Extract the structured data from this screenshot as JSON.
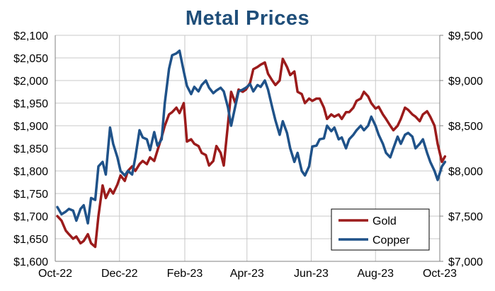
{
  "chart_data": {
    "type": "line",
    "title": "Metal Prices",
    "grid": true,
    "legend_position": "bottom-right",
    "x_axis": {
      "type": "date",
      "min": "2022-10-01",
      "max": "2023-10-01",
      "ticks": [
        {
          "date": "2022-10-01",
          "label": "Oct-22"
        },
        {
          "date": "2022-12-01",
          "label": "Dec-22"
        },
        {
          "date": "2023-02-01",
          "label": "Feb-23"
        },
        {
          "date": "2023-04-01",
          "label": "Apr-23"
        },
        {
          "date": "2023-06-01",
          "label": "Jun-23"
        },
        {
          "date": "2023-08-01",
          "label": "Aug-23"
        },
        {
          "date": "2023-10-01",
          "label": "Oct-23"
        }
      ]
    },
    "y_axis_left": {
      "min": 1600,
      "max": 2100,
      "ticks": [
        {
          "value": 1600,
          "label": "$1,600"
        },
        {
          "value": 1650,
          "label": "$1,650"
        },
        {
          "value": 1700,
          "label": "$1,700"
        },
        {
          "value": 1750,
          "label": "$1,750"
        },
        {
          "value": 1800,
          "label": "$1,800"
        },
        {
          "value": 1850,
          "label": "$1,850"
        },
        {
          "value": 1900,
          "label": "$1,900"
        },
        {
          "value": 1950,
          "label": "$1,950"
        },
        {
          "value": 2000,
          "label": "$2,000"
        },
        {
          "value": 2050,
          "label": "$2,050"
        },
        {
          "value": 2100,
          "label": "$2,100"
        }
      ]
    },
    "y_axis_right": {
      "min": 7000,
      "max": 9500,
      "ticks": [
        {
          "value": 7000,
          "label": "$7,000"
        },
        {
          "value": 7500,
          "label": "$7,500"
        },
        {
          "value": 8000,
          "label": "$8,000"
        },
        {
          "value": 8500,
          "label": "$8,500"
        },
        {
          "value": 9000,
          "label": "$9,000"
        },
        {
          "value": 9500,
          "label": "$9,500"
        }
      ]
    },
    "series": [
      {
        "name": "Gold",
        "axis": "left",
        "color": "#9b1b1b",
        "points": [
          [
            "2022-10-03",
            1700
          ],
          [
            "2022-10-07",
            1690
          ],
          [
            "2022-10-11",
            1668
          ],
          [
            "2022-10-14",
            1660
          ],
          [
            "2022-10-18",
            1650
          ],
          [
            "2022-10-21",
            1655
          ],
          [
            "2022-10-25",
            1640
          ],
          [
            "2022-10-28",
            1645
          ],
          [
            "2022-11-01",
            1660
          ],
          [
            "2022-11-04",
            1640
          ],
          [
            "2022-11-08",
            1632
          ],
          [
            "2022-11-11",
            1700
          ],
          [
            "2022-11-15",
            1768
          ],
          [
            "2022-11-18",
            1740
          ],
          [
            "2022-11-22",
            1760
          ],
          [
            "2022-11-25",
            1750
          ],
          [
            "2022-11-29",
            1770
          ],
          [
            "2022-12-02",
            1790
          ],
          [
            "2022-12-06",
            1778
          ],
          [
            "2022-12-09",
            1800
          ],
          [
            "2022-12-13",
            1810
          ],
          [
            "2022-12-16",
            1800
          ],
          [
            "2022-12-20",
            1815
          ],
          [
            "2022-12-23",
            1822
          ],
          [
            "2022-12-27",
            1815
          ],
          [
            "2022-12-30",
            1830
          ],
          [
            "2023-01-03",
            1822
          ],
          [
            "2023-01-06",
            1845
          ],
          [
            "2023-01-10",
            1875
          ],
          [
            "2023-01-13",
            1900
          ],
          [
            "2023-01-17",
            1925
          ],
          [
            "2023-01-20",
            1930
          ],
          [
            "2023-01-24",
            1940
          ],
          [
            "2023-01-27",
            1928
          ],
          [
            "2023-01-31",
            1950
          ],
          [
            "2023-02-03",
            1865
          ],
          [
            "2023-02-07",
            1870
          ],
          [
            "2023-02-10",
            1860
          ],
          [
            "2023-02-14",
            1855
          ],
          [
            "2023-02-17",
            1840
          ],
          [
            "2023-02-21",
            1835
          ],
          [
            "2023-02-24",
            1812
          ],
          [
            "2023-02-28",
            1822
          ],
          [
            "2023-03-03",
            1855
          ],
          [
            "2023-03-07",
            1840
          ],
          [
            "2023-03-10",
            1812
          ],
          [
            "2023-03-14",
            1905
          ],
          [
            "2023-03-17",
            1975
          ],
          [
            "2023-03-21",
            1950
          ],
          [
            "2023-03-24",
            1980
          ],
          [
            "2023-03-28",
            1975
          ],
          [
            "2023-03-31",
            1980
          ],
          [
            "2023-04-04",
            1995
          ],
          [
            "2023-04-07",
            2025
          ],
          [
            "2023-04-11",
            2030
          ],
          [
            "2023-04-14",
            2035
          ],
          [
            "2023-04-18",
            2040
          ],
          [
            "2023-04-21",
            2015
          ],
          [
            "2023-04-25",
            2000
          ],
          [
            "2023-04-28",
            1990
          ],
          [
            "2023-05-02",
            2000
          ],
          [
            "2023-05-05",
            2048
          ],
          [
            "2023-05-09",
            2030
          ],
          [
            "2023-05-12",
            2012
          ],
          [
            "2023-05-16",
            2020
          ],
          [
            "2023-05-19",
            1975
          ],
          [
            "2023-05-23",
            1970
          ],
          [
            "2023-05-26",
            1950
          ],
          [
            "2023-05-30",
            1960
          ],
          [
            "2023-06-02",
            1955
          ],
          [
            "2023-06-06",
            1960
          ],
          [
            "2023-06-09",
            1960
          ],
          [
            "2023-06-13",
            1940
          ],
          [
            "2023-06-16",
            1915
          ],
          [
            "2023-06-20",
            1925
          ],
          [
            "2023-06-23",
            1920
          ],
          [
            "2023-06-27",
            1925
          ],
          [
            "2023-06-30",
            1915
          ],
          [
            "2023-07-04",
            1930
          ],
          [
            "2023-07-07",
            1930
          ],
          [
            "2023-07-11",
            1940
          ],
          [
            "2023-07-14",
            1955
          ],
          [
            "2023-07-18",
            1960
          ],
          [
            "2023-07-21",
            1975
          ],
          [
            "2023-07-25",
            1965
          ],
          [
            "2023-07-28",
            1950
          ],
          [
            "2023-08-01",
            1938
          ],
          [
            "2023-08-04",
            1942
          ],
          [
            "2023-08-08",
            1925
          ],
          [
            "2023-08-11",
            1915
          ],
          [
            "2023-08-15",
            1900
          ],
          [
            "2023-08-18",
            1890
          ],
          [
            "2023-08-22",
            1900
          ],
          [
            "2023-08-25",
            1915
          ],
          [
            "2023-08-29",
            1940
          ],
          [
            "2023-09-01",
            1935
          ],
          [
            "2023-09-05",
            1925
          ],
          [
            "2023-09-08",
            1920
          ],
          [
            "2023-09-12",
            1910
          ],
          [
            "2023-09-15",
            1925
          ],
          [
            "2023-09-19",
            1932
          ],
          [
            "2023-09-22",
            1920
          ],
          [
            "2023-09-26",
            1900
          ],
          [
            "2023-09-29",
            1860
          ],
          [
            "2023-10-03",
            1820
          ],
          [
            "2023-10-06",
            1832
          ]
        ]
      },
      {
        "name": "Copper",
        "axis": "right",
        "color": "#1f5289",
        "points": [
          [
            "2022-10-03",
            7600
          ],
          [
            "2022-10-07",
            7520
          ],
          [
            "2022-10-11",
            7550
          ],
          [
            "2022-10-14",
            7580
          ],
          [
            "2022-10-18",
            7560
          ],
          [
            "2022-10-21",
            7450
          ],
          [
            "2022-10-25",
            7580
          ],
          [
            "2022-10-28",
            7620
          ],
          [
            "2022-11-01",
            7420
          ],
          [
            "2022-11-04",
            7700
          ],
          [
            "2022-11-08",
            7680
          ],
          [
            "2022-11-11",
            8050
          ],
          [
            "2022-11-15",
            8100
          ],
          [
            "2022-11-18",
            7960
          ],
          [
            "2022-11-22",
            8480
          ],
          [
            "2022-11-25",
            8300
          ],
          [
            "2022-11-29",
            8150
          ],
          [
            "2022-12-02",
            8000
          ],
          [
            "2022-12-06",
            7950
          ],
          [
            "2022-12-09",
            8000
          ],
          [
            "2022-12-13",
            7960
          ],
          [
            "2022-12-16",
            8150
          ],
          [
            "2022-12-20",
            8450
          ],
          [
            "2022-12-23",
            8370
          ],
          [
            "2022-12-27",
            8350
          ],
          [
            "2022-12-30",
            8230
          ],
          [
            "2023-01-03",
            8430
          ],
          [
            "2023-01-06",
            8280
          ],
          [
            "2023-01-10",
            8350
          ],
          [
            "2023-01-13",
            8750
          ],
          [
            "2023-01-17",
            9130
          ],
          [
            "2023-01-20",
            9280
          ],
          [
            "2023-01-24",
            9300
          ],
          [
            "2023-01-27",
            9330
          ],
          [
            "2023-01-31",
            9100
          ],
          [
            "2023-02-03",
            8940
          ],
          [
            "2023-02-07",
            8850
          ],
          [
            "2023-02-10",
            8930
          ],
          [
            "2023-02-14",
            8880
          ],
          [
            "2023-02-17",
            8950
          ],
          [
            "2023-02-21",
            9000
          ],
          [
            "2023-02-24",
            8920
          ],
          [
            "2023-02-28",
            8860
          ],
          [
            "2023-03-03",
            8890
          ],
          [
            "2023-03-07",
            8920
          ],
          [
            "2023-03-10",
            8880
          ],
          [
            "2023-03-14",
            8700
          ],
          [
            "2023-03-17",
            8500
          ],
          [
            "2023-03-21",
            8720
          ],
          [
            "2023-03-24",
            8880
          ],
          [
            "2023-03-28",
            8900
          ],
          [
            "2023-03-31",
            8920
          ],
          [
            "2023-04-04",
            8960
          ],
          [
            "2023-04-07",
            8880
          ],
          [
            "2023-04-11",
            8950
          ],
          [
            "2023-04-14",
            8930
          ],
          [
            "2023-04-18",
            9000
          ],
          [
            "2023-04-21",
            8900
          ],
          [
            "2023-04-25",
            8700
          ],
          [
            "2023-04-28",
            8560
          ],
          [
            "2023-05-02",
            8400
          ],
          [
            "2023-05-05",
            8550
          ],
          [
            "2023-05-09",
            8420
          ],
          [
            "2023-05-12",
            8250
          ],
          [
            "2023-05-16",
            8100
          ],
          [
            "2023-05-19",
            8200
          ],
          [
            "2023-05-23",
            8000
          ],
          [
            "2023-05-26",
            7950
          ],
          [
            "2023-05-30",
            8050
          ],
          [
            "2023-06-02",
            8270
          ],
          [
            "2023-06-06",
            8280
          ],
          [
            "2023-06-09",
            8350
          ],
          [
            "2023-06-13",
            8360
          ],
          [
            "2023-06-16",
            8500
          ],
          [
            "2023-06-20",
            8440
          ],
          [
            "2023-06-23",
            8480
          ],
          [
            "2023-06-27",
            8350
          ],
          [
            "2023-06-30",
            8370
          ],
          [
            "2023-07-04",
            8250
          ],
          [
            "2023-07-07",
            8350
          ],
          [
            "2023-07-11",
            8400
          ],
          [
            "2023-07-14",
            8450
          ],
          [
            "2023-07-18",
            8500
          ],
          [
            "2023-07-21",
            8450
          ],
          [
            "2023-07-25",
            8500
          ],
          [
            "2023-07-28",
            8600
          ],
          [
            "2023-08-01",
            8500
          ],
          [
            "2023-08-04",
            8400
          ],
          [
            "2023-08-08",
            8300
          ],
          [
            "2023-08-11",
            8200
          ],
          [
            "2023-08-15",
            8150
          ],
          [
            "2023-08-18",
            8250
          ],
          [
            "2023-08-22",
            8380
          ],
          [
            "2023-08-25",
            8300
          ],
          [
            "2023-08-29",
            8400
          ],
          [
            "2023-09-01",
            8420
          ],
          [
            "2023-09-05",
            8380
          ],
          [
            "2023-09-08",
            8250
          ],
          [
            "2023-09-12",
            8300
          ],
          [
            "2023-09-15",
            8350
          ],
          [
            "2023-09-19",
            8200
          ],
          [
            "2023-09-22",
            8100
          ],
          [
            "2023-09-26",
            8000
          ],
          [
            "2023-09-29",
            7900
          ],
          [
            "2023-10-03",
            8050
          ],
          [
            "2023-10-06",
            8100
          ]
        ]
      }
    ]
  }
}
